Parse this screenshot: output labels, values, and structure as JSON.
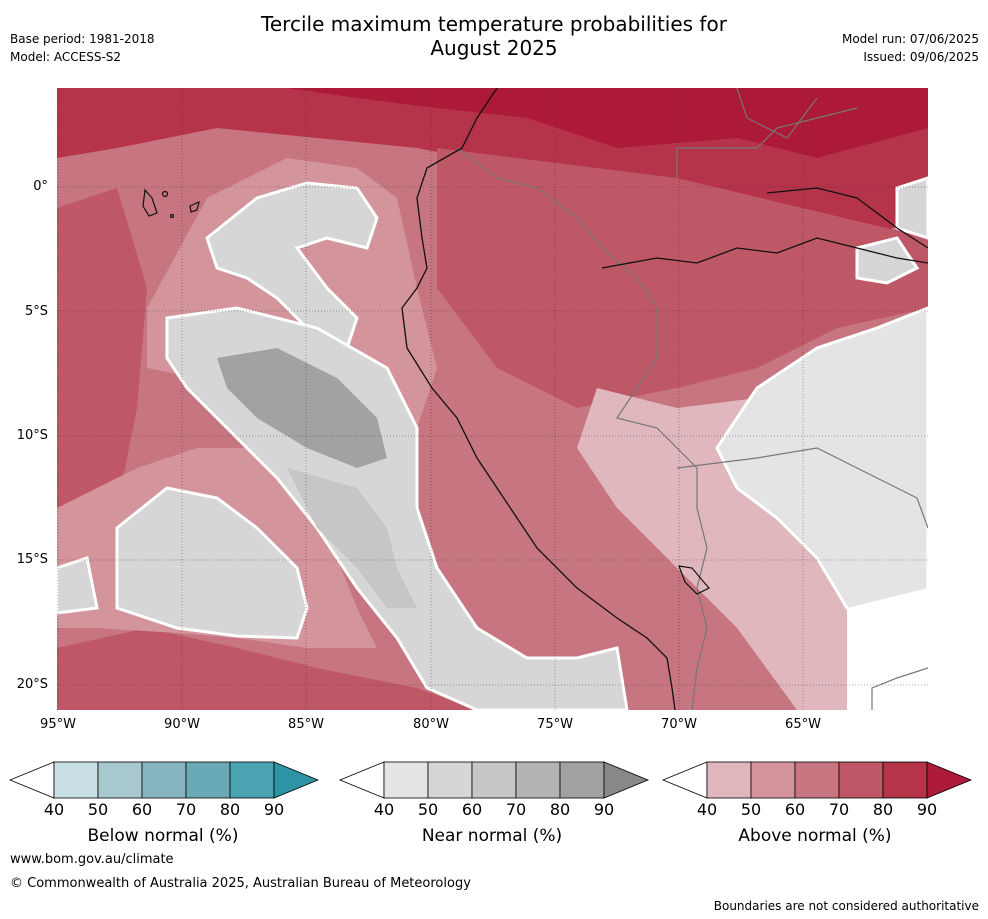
{
  "header": {
    "title_line1": "Tercile maximum temperature probabilities for",
    "title_line2": "August 2025",
    "base_period": "Base period: 1981-2018",
    "model": "Model: ACCESS-S2",
    "model_run": "Model run: 07/06/2025",
    "issued": "Issued: 09/06/2025"
  },
  "map": {
    "lat_labels": [
      "0°",
      "5°S",
      "10°S",
      "15°S",
      "20°S"
    ],
    "lon_labels": [
      "95°W",
      "90°W",
      "85°W",
      "80°W",
      "75°W",
      "70°W",
      "65°W"
    ]
  },
  "colorbars": [
    {
      "label": "Below normal (%)",
      "ticks": [
        "40",
        "50",
        "60",
        "70",
        "80",
        "90"
      ],
      "colors": [
        "#ffffff",
        "#c8e0e4",
        "#a6c8ce",
        "#88b6c0",
        "#6aaab6",
        "#4aa3b0",
        "#2f93a6"
      ]
    },
    {
      "label": "Near normal (%)",
      "ticks": [
        "40",
        "50",
        "60",
        "70",
        "80",
        "90"
      ],
      "colors": [
        "#ffffff",
        "#e4e4e4",
        "#d6d6d6",
        "#c6c6c6",
        "#b4b4b4",
        "#a2a2a2",
        "#888888"
      ]
    },
    {
      "label": "Above normal (%)",
      "ticks": [
        "40",
        "50",
        "60",
        "70",
        "80",
        "90"
      ],
      "colors": [
        "#ffffff",
        "#e0b7bd",
        "#d3949c",
        "#c77580",
        "#be5766",
        "#b5344a",
        "#ad1a38"
      ]
    }
  ],
  "footer": {
    "website": "www.bom.gov.au/climate",
    "copyright": "© Commonwealth of Australia 2025, Australian Bureau of Meteorology",
    "disclaimer": "Boundaries are not considered authoritative"
  }
}
